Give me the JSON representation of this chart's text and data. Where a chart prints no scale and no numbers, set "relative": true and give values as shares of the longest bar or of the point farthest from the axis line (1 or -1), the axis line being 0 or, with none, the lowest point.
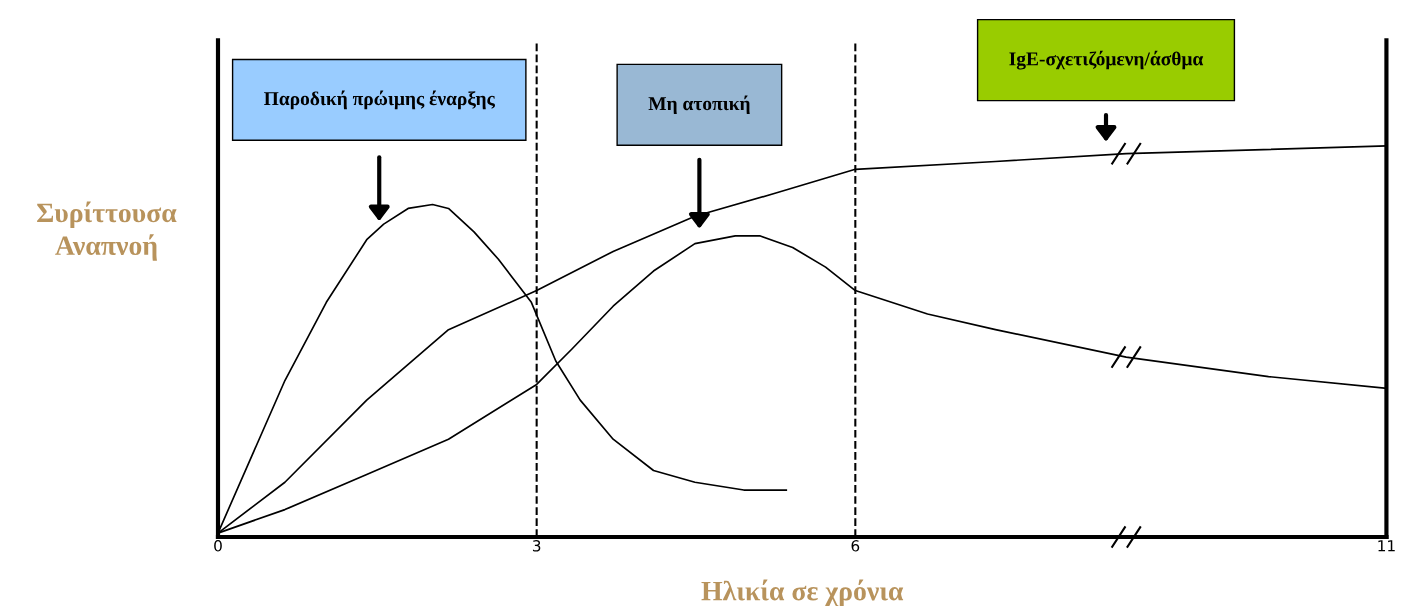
{
  "chart_data": {
    "type": "line",
    "relative": true,
    "xlabel": "Ηλικία σε χρόνια",
    "ylabel": "Συρίττουσα\nΑναπνοή",
    "xlim": [
      0,
      11
    ],
    "xticks": [
      0,
      3,
      6,
      11
    ],
    "grid": false,
    "legend": false,
    "marker": "none",
    "line_style": "solid",
    "series": [
      {
        "color": "#000000",
        "x": [
          0,
          0.63,
          1.02,
          1.4,
          1.56,
          1.79,
          2.02,
          2.17,
          2.41,
          2.64,
          2.95,
          3.18,
          3.41,
          3.72,
          4.1,
          4.49,
          4.95,
          5.35
        ],
        "values": [
          0.01,
          0.4,
          0.6,
          0.76,
          0.8,
          0.84,
          0.85,
          0.84,
          0.78,
          0.71,
          0.6,
          0.45,
          0.35,
          0.25,
          0.17,
          0.14,
          0.12,
          0.12
        ]
      },
      {
        "color": "#000000",
        "x": [
          0,
          0.63,
          1.4,
          2.17,
          3.0,
          3.72,
          4.49,
          5.26,
          6.0,
          7.32,
          8.55,
          11
        ],
        "values": [
          0.01,
          0.14,
          0.35,
          0.53,
          0.63,
          0.73,
          0.82,
          0.88,
          0.94,
          0.96,
          0.98,
          1.0
        ]
      },
      {
        "color": "#000000",
        "x": [
          0,
          0.63,
          1.4,
          2.17,
          3.0,
          3.33,
          3.72,
          4.1,
          4.49,
          4.87,
          5.1,
          5.41,
          5.72,
          6.0,
          6.68,
          7.32,
          8.55,
          9.89,
          11
        ],
        "values": [
          0.01,
          0.07,
          0.16,
          0.25,
          0.39,
          0.48,
          0.59,
          0.68,
          0.75,
          0.77,
          0.77,
          0.74,
          0.69,
          0.63,
          0.57,
          0.53,
          0.46,
          0.41,
          0.38
        ]
      }
    ],
    "ref_lines": [
      {
        "axis": "x",
        "value": 3,
        "line_style": "dashed",
        "color": "#000000"
      },
      {
        "axis": "x",
        "value": 6,
        "line_style": "dashed",
        "color": "#000000"
      }
    ],
    "annotations": [
      "Παροδική πρώιμης έναρξης",
      "Μη ατοπική",
      "IgE-σχετιζόμενη/άσθμα"
    ]
  }
}
